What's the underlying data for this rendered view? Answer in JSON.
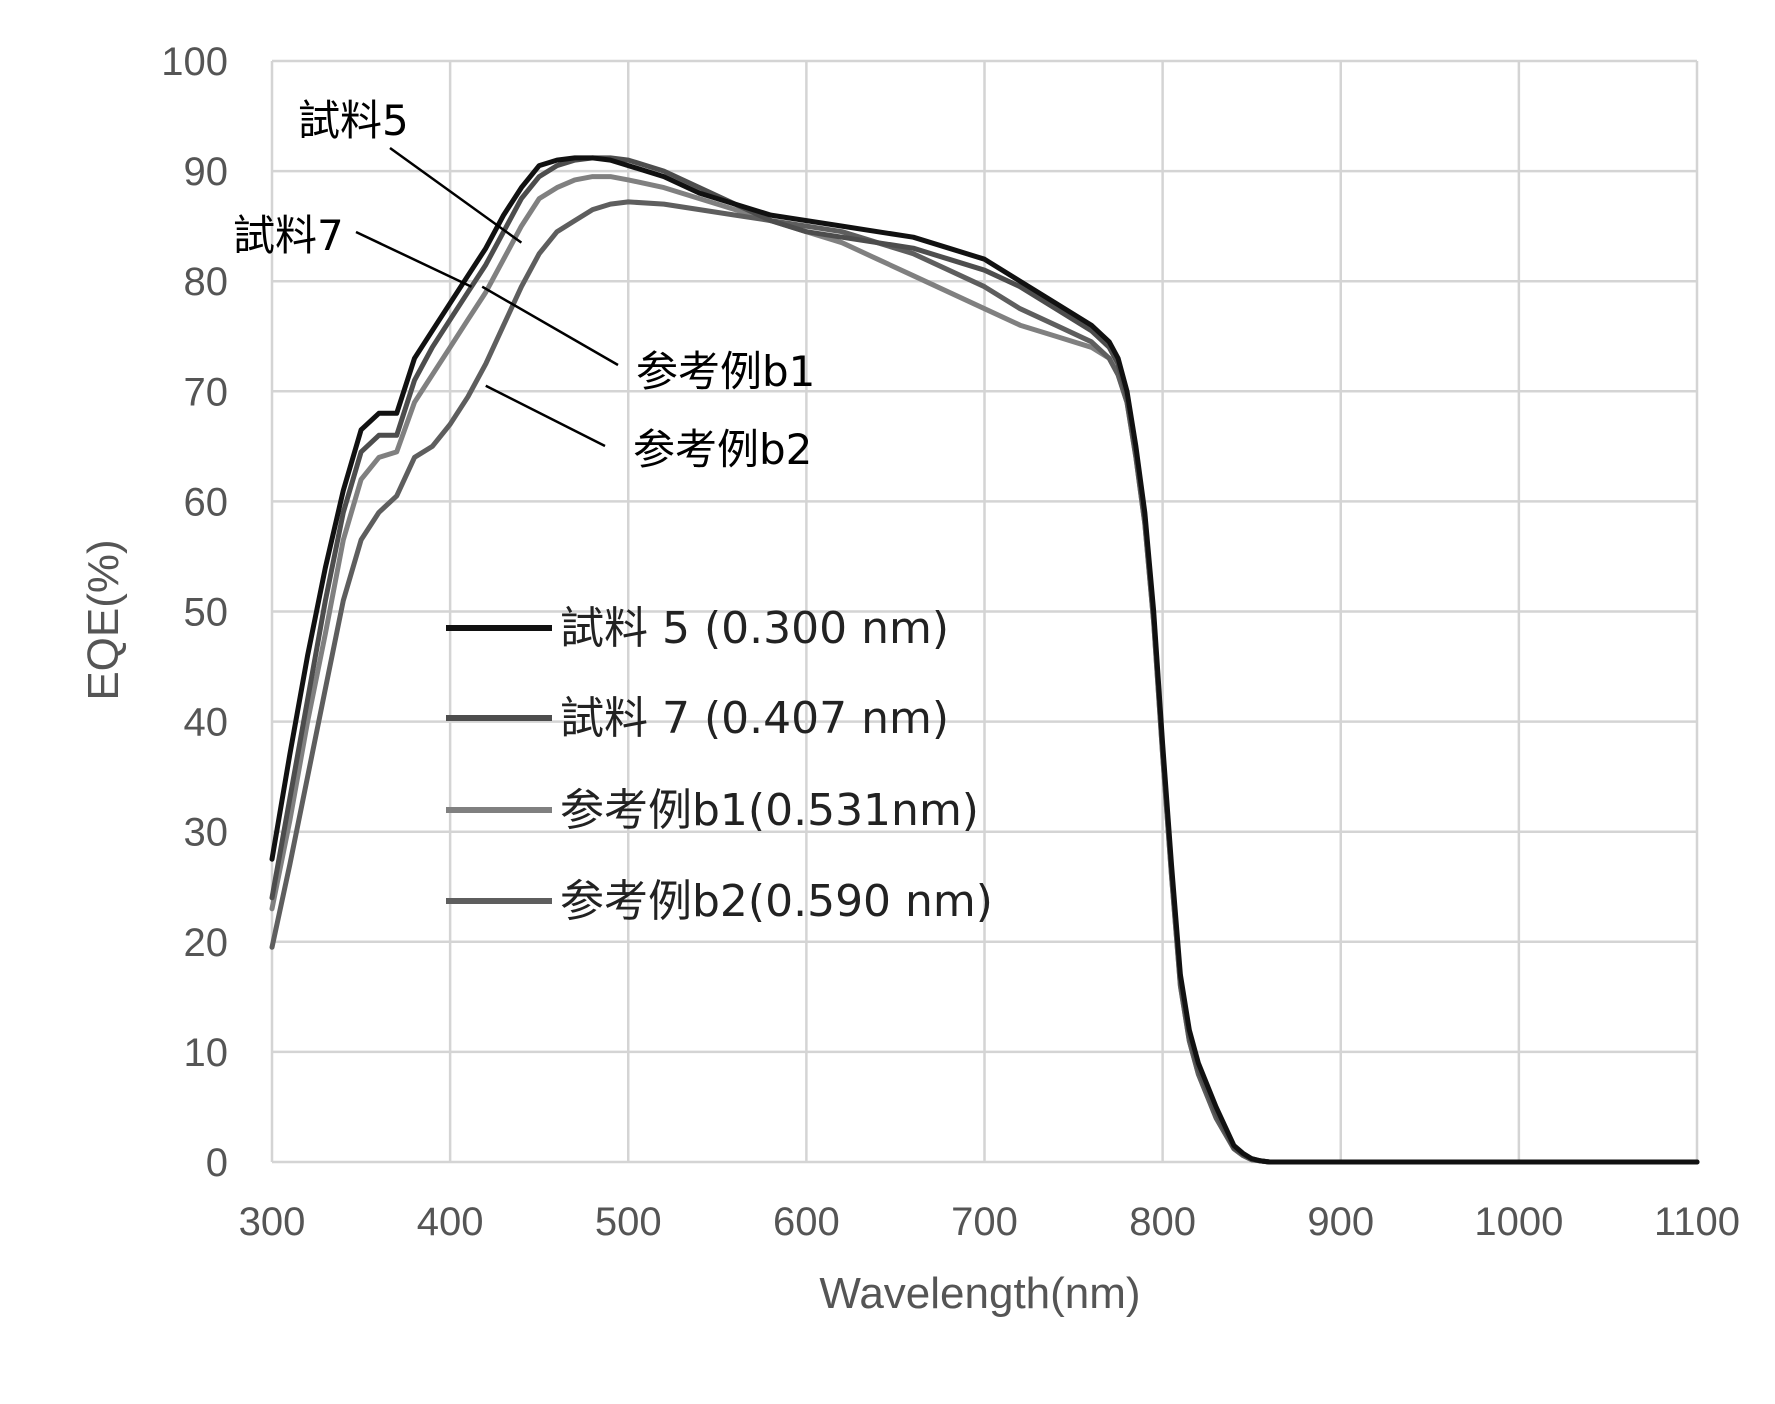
{
  "chart_data": {
    "type": "line",
    "title": "",
    "xlabel": "Wavelength(nm)",
    "ylabel": "EQE(%)",
    "xlim": [
      300,
      1100
    ],
    "ylim": [
      0,
      100
    ],
    "xticks": [
      "300",
      "400",
      "500",
      "600",
      "700",
      "800",
      "900",
      "1000",
      "1100"
    ],
    "yticks": [
      "0",
      "10",
      "20",
      "30",
      "40",
      "50",
      "60",
      "70",
      "80",
      "90",
      "100"
    ],
    "grid": true,
    "legend_position": "center-left",
    "series": [
      {
        "name": "試料 5 (0.300 nm)",
        "color": "#111111",
        "x": [
          300,
          310,
          320,
          330,
          340,
          350,
          360,
          370,
          380,
          390,
          400,
          410,
          420,
          430,
          440,
          450,
          460,
          470,
          480,
          490,
          500,
          520,
          540,
          560,
          580,
          600,
          620,
          640,
          660,
          680,
          700,
          720,
          740,
          760,
          770,
          775,
          780,
          785,
          790,
          795,
          800,
          805,
          810,
          815,
          820,
          830,
          840,
          845,
          850,
          855,
          860,
          870,
          900,
          1000,
          1100
        ],
        "y": [
          27.5,
          37,
          46,
          54,
          61,
          66.5,
          68,
          68,
          73,
          75.5,
          78,
          80.5,
          83,
          86,
          88.5,
          90.5,
          91,
          91.2,
          91.2,
          91,
          90.5,
          89.5,
          88,
          87,
          86,
          85.5,
          85,
          84.5,
          84,
          83,
          82,
          80,
          78,
          76,
          74.5,
          73,
          70,
          65,
          59,
          50,
          38,
          27,
          17,
          12,
          9,
          5,
          1.5,
          0.8,
          0.3,
          0.1,
          0,
          0,
          0,
          0,
          0
        ]
      },
      {
        "name": "試料 7 (0.407 nm)",
        "color": "#4d4d4d",
        "x": [
          300,
          310,
          320,
          330,
          340,
          350,
          360,
          370,
          380,
          390,
          400,
          410,
          420,
          430,
          440,
          450,
          460,
          470,
          480,
          490,
          500,
          520,
          540,
          560,
          580,
          600,
          620,
          640,
          660,
          680,
          700,
          720,
          740,
          760,
          770,
          775,
          780,
          785,
          790,
          795,
          800,
          805,
          810,
          815,
          820,
          830,
          840,
          845,
          850,
          855,
          860,
          870,
          900,
          1000,
          1100
        ],
        "y": [
          24,
          33,
          42,
          51,
          59,
          64.5,
          66,
          66,
          71,
          74,
          76.5,
          79,
          81.5,
          84.5,
          87.5,
          89.5,
          90.5,
          91,
          91.2,
          91.2,
          91,
          90,
          88.5,
          87,
          85.5,
          84.5,
          84,
          83.5,
          83,
          82,
          81,
          79.5,
          77.5,
          75.5,
          74,
          72.5,
          69.5,
          64.5,
          58.5,
          49.5,
          37.5,
          26.5,
          16.5,
          11.5,
          8.5,
          4.5,
          1.3,
          0.7,
          0.3,
          0.1,
          0,
          0,
          0,
          0,
          0
        ]
      },
      {
        "name": "参考例b1(0.531nm)",
        "color": "#808080",
        "x": [
          300,
          310,
          320,
          330,
          340,
          350,
          360,
          370,
          380,
          390,
          400,
          410,
          420,
          430,
          440,
          450,
          460,
          470,
          480,
          490,
          500,
          520,
          540,
          560,
          580,
          600,
          620,
          640,
          660,
          680,
          700,
          720,
          740,
          760,
          770,
          775,
          780,
          785,
          790,
          795,
          800,
          805,
          810,
          815,
          820,
          830,
          840,
          845,
          850,
          855,
          860,
          870,
          900,
          1000,
          1100
        ],
        "y": [
          23,
          31,
          40,
          48,
          56.5,
          62,
          64,
          64.5,
          69,
          71.5,
          74,
          76.5,
          79,
          82,
          85,
          87.5,
          88.5,
          89.2,
          89.5,
          89.5,
          89.2,
          88.5,
          87.5,
          86.5,
          85.5,
          84.5,
          83.5,
          82,
          80.5,
          79,
          77.5,
          76,
          75,
          74,
          73,
          71.5,
          69,
          64,
          58,
          49,
          37,
          26,
          16,
          11,
          8,
          4,
          1.2,
          0.6,
          0.2,
          0.1,
          0,
          0,
          0,
          0,
          0
        ]
      },
      {
        "name": "参考例b2(0.590 nm)",
        "color": "#5e5e5e",
        "x": [
          300,
          310,
          320,
          330,
          340,
          350,
          360,
          370,
          380,
          390,
          400,
          410,
          420,
          430,
          440,
          450,
          460,
          470,
          480,
          490,
          500,
          520,
          540,
          560,
          580,
          600,
          620,
          640,
          660,
          680,
          700,
          720,
          740,
          760,
          770,
          775,
          780,
          785,
          790,
          795,
          800,
          805,
          810,
          815,
          820,
          830,
          840,
          845,
          850,
          855,
          860,
          870,
          900,
          1000,
          1100
        ],
        "y": [
          19.5,
          27,
          35,
          43,
          51,
          56.5,
          59,
          60.5,
          64,
          65,
          67,
          69.5,
          72.5,
          76,
          79.5,
          82.5,
          84.5,
          85.5,
          86.5,
          87,
          87.2,
          87,
          86.5,
          86,
          85.5,
          85,
          84.5,
          83.5,
          82.5,
          81,
          79.5,
          77.5,
          76,
          74.5,
          73,
          71.5,
          69,
          64,
          58,
          49,
          37,
          26,
          16,
          11,
          8,
          4,
          1.2,
          0.6,
          0.2,
          0.1,
          0,
          0,
          0,
          0,
          0
        ]
      }
    ],
    "annotations": [
      {
        "text": "試料5",
        "target_x": 440,
        "target_y": 83.5
      },
      {
        "text": "試料7",
        "target_x": 412,
        "target_y": 79.5
      },
      {
        "text": "参考例b1",
        "target_x": 418,
        "target_y": 79.5
      },
      {
        "text": "参考例b2",
        "target_x": 420,
        "target_y": 70.5
      }
    ]
  }
}
